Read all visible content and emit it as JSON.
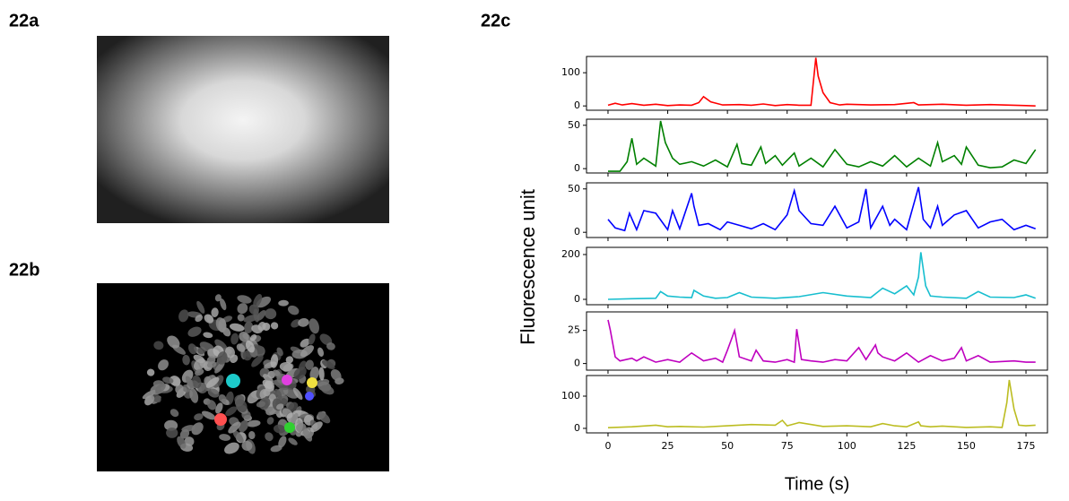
{
  "panels": {
    "a": "22a",
    "b": "22b",
    "c": "22c"
  },
  "y_label": "Fluorescence unit",
  "chart_data": [
    {
      "type": "line",
      "color": "#ff0000",
      "xlim": [
        -9,
        184
      ],
      "xticks": [
        0,
        25,
        50,
        75,
        100,
        125,
        150,
        175
      ],
      "ylim": [
        -13,
        149
      ],
      "yticks": [
        0,
        100
      ],
      "x": [
        0,
        3,
        6,
        10,
        15,
        20,
        25,
        30,
        35,
        38,
        40,
        43,
        48,
        55,
        60,
        65,
        70,
        75,
        80,
        85,
        87,
        88,
        90,
        93,
        97,
        100,
        110,
        120,
        128,
        130,
        140,
        150,
        160,
        170,
        175,
        179
      ],
      "values": [
        2,
        8,
        3,
        7,
        2,
        5,
        1,
        3,
        2,
        10,
        28,
        12,
        3,
        4,
        2,
        6,
        1,
        4,
        2,
        2,
        145,
        90,
        40,
        10,
        3,
        5,
        3,
        4,
        10,
        3,
        5,
        2,
        4,
        2,
        1,
        0
      ]
    },
    {
      "type": "line",
      "color": "#008000",
      "xlim": [
        -9,
        184
      ],
      "xticks": [
        0,
        25,
        50,
        75,
        100,
        125,
        150,
        175
      ],
      "ylim": [
        -5,
        57
      ],
      "yticks": [
        0,
        50
      ],
      "x": [
        0,
        5,
        8,
        10,
        12,
        15,
        20,
        22,
        24,
        27,
        30,
        35,
        40,
        45,
        50,
        54,
        56,
        60,
        64,
        66,
        70,
        73,
        78,
        80,
        85,
        90,
        95,
        100,
        105,
        110,
        115,
        120,
        125,
        130,
        135,
        138,
        140,
        145,
        148,
        150,
        155,
        160,
        165,
        170,
        175,
        179
      ],
      "values": [
        -3,
        -3,
        8,
        35,
        5,
        12,
        3,
        55,
        30,
        12,
        5,
        8,
        3,
        10,
        2,
        28,
        6,
        4,
        25,
        6,
        15,
        4,
        18,
        3,
        12,
        2,
        22,
        5,
        2,
        8,
        3,
        15,
        2,
        12,
        3,
        30,
        8,
        15,
        5,
        25,
        4,
        1,
        2,
        10,
        6,
        22
      ]
    },
    {
      "type": "line",
      "color": "#0000ff",
      "xlim": [
        -9,
        184
      ],
      "xticks": [
        0,
        25,
        50,
        75,
        100,
        125,
        150,
        175
      ],
      "ylim": [
        -6,
        57
      ],
      "yticks": [
        0,
        50
      ],
      "x": [
        0,
        3,
        7,
        9,
        12,
        15,
        20,
        25,
        27,
        30,
        35,
        36,
        38,
        42,
        47,
        50,
        55,
        60,
        65,
        70,
        75,
        78,
        80,
        85,
        90,
        95,
        100,
        105,
        108,
        110,
        115,
        118,
        120,
        125,
        130,
        132,
        135,
        138,
        140,
        145,
        150,
        155,
        160,
        165,
        170,
        175,
        179
      ],
      "values": [
        15,
        5,
        2,
        22,
        3,
        25,
        22,
        3,
        25,
        4,
        45,
        30,
        8,
        10,
        3,
        12,
        8,
        4,
        10,
        3,
        20,
        48,
        25,
        10,
        8,
        30,
        5,
        12,
        50,
        5,
        30,
        8,
        15,
        3,
        52,
        15,
        5,
        30,
        8,
        20,
        25,
        5,
        12,
        15,
        3,
        8,
        4
      ]
    },
    {
      "type": "line",
      "color": "#17becf",
      "xlim": [
        -9,
        184
      ],
      "xticks": [
        0,
        25,
        50,
        75,
        100,
        125,
        150,
        175
      ],
      "ylim": [
        -24,
        232
      ],
      "yticks": [
        0,
        200
      ],
      "x": [
        0,
        10,
        20,
        22,
        25,
        30,
        35,
        36,
        40,
        45,
        50,
        55,
        60,
        70,
        80,
        90,
        100,
        110,
        115,
        120,
        125,
        128,
        130,
        131,
        133,
        135,
        140,
        150,
        155,
        160,
        170,
        175,
        179
      ],
      "values": [
        0,
        3,
        5,
        35,
        15,
        10,
        8,
        40,
        15,
        5,
        8,
        30,
        10,
        5,
        12,
        30,
        15,
        8,
        50,
        25,
        60,
        20,
        100,
        210,
        60,
        15,
        10,
        5,
        35,
        10,
        8,
        20,
        5
      ]
    },
    {
      "type": "line",
      "color": "#bf00bf",
      "xlim": [
        -9,
        184
      ],
      "xticks": [
        0,
        25,
        50,
        75,
        100,
        125,
        150,
        175
      ],
      "ylim": [
        -5,
        39
      ],
      "yticks": [
        0,
        25
      ],
      "x": [
        0,
        1,
        3,
        5,
        10,
        12,
        15,
        20,
        25,
        30,
        35,
        40,
        45,
        48,
        50,
        52,
        53,
        55,
        60,
        62,
        65,
        70,
        75,
        78,
        79,
        81,
        85,
        90,
        95,
        100,
        105,
        108,
        112,
        113,
        115,
        120,
        125,
        130,
        135,
        140,
        145,
        148,
        150,
        155,
        160,
        170,
        175,
        179
      ],
      "values": [
        33,
        25,
        5,
        2,
        4,
        2,
        5,
        1,
        3,
        1,
        8,
        2,
        4,
        1,
        10,
        20,
        25,
        5,
        2,
        10,
        2,
        1,
        3,
        1,
        26,
        3,
        2,
        1,
        3,
        2,
        12,
        3,
        14,
        8,
        5,
        2,
        8,
        1,
        6,
        2,
        4,
        12,
        2,
        6,
        1,
        2,
        1,
        1
      ]
    },
    {
      "type": "line",
      "color": "#bcbd22",
      "xlim": [
        -9,
        184
      ],
      "xticks": [
        0,
        25,
        50,
        75,
        100,
        125,
        150,
        175
      ],
      "ylim": [
        -14,
        164
      ],
      "yticks": [
        0,
        100
      ],
      "xlabel": "Time (s)",
      "x": [
        0,
        10,
        20,
        25,
        30,
        40,
        50,
        60,
        70,
        73,
        75,
        80,
        90,
        100,
        110,
        115,
        120,
        125,
        130,
        131,
        135,
        140,
        150,
        160,
        165,
        167,
        168,
        170,
        172,
        175,
        179
      ],
      "values": [
        2,
        5,
        10,
        5,
        6,
        4,
        8,
        12,
        10,
        25,
        8,
        18,
        6,
        8,
        5,
        15,
        8,
        5,
        20,
        8,
        5,
        7,
        3,
        5,
        3,
        80,
        150,
        60,
        10,
        8,
        10
      ]
    }
  ]
}
